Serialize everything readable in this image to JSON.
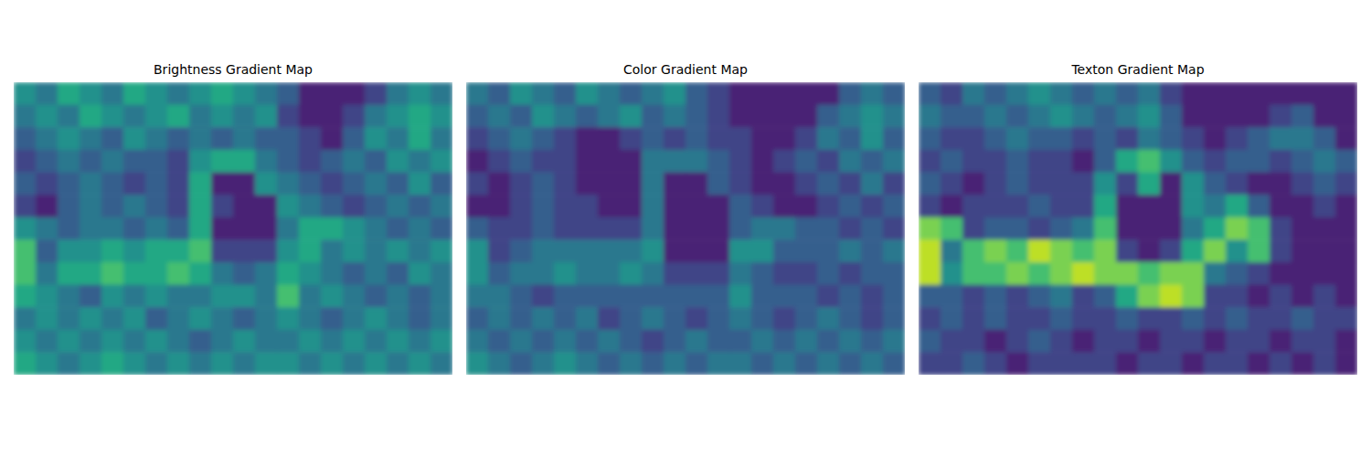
{
  "chart_data": [
    {
      "type": "heatmap",
      "title": "Brightness Gradient Map",
      "tick_labels": false,
      "zlim": [
        0,
        1
      ],
      "cells": [
        [
          0.5,
          0.4,
          0.6,
          0.5,
          0.4,
          0.6,
          0.5,
          0.4,
          0.5,
          0.6,
          0.5,
          0.4,
          0.3,
          0.1,
          0.1,
          0.1,
          0.2,
          0.4,
          0.5,
          0.4
        ],
        [
          0.4,
          0.5,
          0.4,
          0.6,
          0.5,
          0.4,
          0.5,
          0.6,
          0.4,
          0.5,
          0.4,
          0.5,
          0.2,
          0.1,
          0.1,
          0.2,
          0.4,
          0.5,
          0.6,
          0.5
        ],
        [
          0.3,
          0.4,
          0.5,
          0.4,
          0.3,
          0.5,
          0.4,
          0.3,
          0.4,
          0.3,
          0.4,
          0.3,
          0.3,
          0.2,
          0.1,
          0.3,
          0.5,
          0.4,
          0.6,
          0.4
        ],
        [
          0.2,
          0.3,
          0.4,
          0.3,
          0.4,
          0.3,
          0.3,
          0.2,
          0.5,
          0.6,
          0.6,
          0.4,
          0.3,
          0.2,
          0.3,
          0.4,
          0.3,
          0.5,
          0.4,
          0.5
        ],
        [
          0.3,
          0.2,
          0.3,
          0.4,
          0.3,
          0.2,
          0.3,
          0.2,
          0.6,
          0.1,
          0.1,
          0.5,
          0.4,
          0.3,
          0.2,
          0.3,
          0.4,
          0.3,
          0.5,
          0.3
        ],
        [
          0.2,
          0.1,
          0.3,
          0.4,
          0.3,
          0.4,
          0.3,
          0.2,
          0.6,
          0.2,
          0.1,
          0.1,
          0.5,
          0.4,
          0.3,
          0.2,
          0.3,
          0.4,
          0.3,
          0.4
        ],
        [
          0.5,
          0.4,
          0.3,
          0.4,
          0.4,
          0.3,
          0.4,
          0.3,
          0.6,
          0.1,
          0.1,
          0.1,
          0.4,
          0.6,
          0.6,
          0.5,
          0.4,
          0.3,
          0.4,
          0.3
        ],
        [
          0.7,
          0.3,
          0.5,
          0.5,
          0.6,
          0.5,
          0.6,
          0.6,
          0.7,
          0.2,
          0.2,
          0.2,
          0.5,
          0.6,
          0.4,
          0.5,
          0.4,
          0.5,
          0.4,
          0.5
        ],
        [
          0.7,
          0.4,
          0.6,
          0.6,
          0.7,
          0.6,
          0.6,
          0.7,
          0.6,
          0.4,
          0.3,
          0.4,
          0.6,
          0.5,
          0.4,
          0.3,
          0.4,
          0.3,
          0.5,
          0.4
        ],
        [
          0.6,
          0.5,
          0.4,
          0.3,
          0.5,
          0.4,
          0.5,
          0.4,
          0.4,
          0.5,
          0.5,
          0.4,
          0.7,
          0.4,
          0.5,
          0.4,
          0.3,
          0.4,
          0.3,
          0.4
        ],
        [
          0.4,
          0.5,
          0.4,
          0.5,
          0.4,
          0.5,
          0.3,
          0.4,
          0.5,
          0.4,
          0.3,
          0.4,
          0.5,
          0.4,
          0.3,
          0.4,
          0.5,
          0.4,
          0.3,
          0.4
        ],
        [
          0.5,
          0.4,
          0.5,
          0.4,
          0.5,
          0.4,
          0.5,
          0.4,
          0.3,
          0.4,
          0.5,
          0.4,
          0.4,
          0.5,
          0.4,
          0.5,
          0.4,
          0.5,
          0.4,
          0.5
        ],
        [
          0.6,
          0.5,
          0.4,
          0.5,
          0.6,
          0.5,
          0.4,
          0.5,
          0.4,
          0.5,
          0.4,
          0.5,
          0.5,
          0.4,
          0.5,
          0.4,
          0.5,
          0.4,
          0.5,
          0.4
        ]
      ]
    },
    {
      "type": "heatmap",
      "title": "Color Gradient Map",
      "tick_labels": false,
      "zlim": [
        0,
        1
      ],
      "cells": [
        [
          0.4,
          0.3,
          0.5,
          0.4,
          0.3,
          0.5,
          0.4,
          0.3,
          0.4,
          0.5,
          0.3,
          0.2,
          0.1,
          0.1,
          0.1,
          0.1,
          0.1,
          0.3,
          0.4,
          0.3
        ],
        [
          0.3,
          0.4,
          0.3,
          0.5,
          0.4,
          0.3,
          0.4,
          0.5,
          0.3,
          0.4,
          0.3,
          0.2,
          0.1,
          0.1,
          0.1,
          0.1,
          0.3,
          0.4,
          0.5,
          0.4
        ],
        [
          0.2,
          0.3,
          0.4,
          0.3,
          0.2,
          0.1,
          0.1,
          0.2,
          0.3,
          0.2,
          0.3,
          0.2,
          0.2,
          0.1,
          0.1,
          0.2,
          0.4,
          0.3,
          0.5,
          0.3
        ],
        [
          0.1,
          0.2,
          0.3,
          0.2,
          0.2,
          0.1,
          0.1,
          0.1,
          0.4,
          0.4,
          0.4,
          0.3,
          0.2,
          0.1,
          0.2,
          0.3,
          0.2,
          0.4,
          0.3,
          0.4
        ],
        [
          0.2,
          0.1,
          0.2,
          0.3,
          0.2,
          0.1,
          0.1,
          0.1,
          0.4,
          0.1,
          0.1,
          0.3,
          0.2,
          0.1,
          0.1,
          0.2,
          0.3,
          0.2,
          0.4,
          0.2
        ],
        [
          0.1,
          0.1,
          0.2,
          0.3,
          0.2,
          0.2,
          0.1,
          0.1,
          0.4,
          0.1,
          0.1,
          0.1,
          0.3,
          0.2,
          0.1,
          0.1,
          0.2,
          0.3,
          0.2,
          0.3
        ],
        [
          0.3,
          0.2,
          0.2,
          0.3,
          0.2,
          0.2,
          0.2,
          0.2,
          0.4,
          0.1,
          0.1,
          0.1,
          0.3,
          0.4,
          0.4,
          0.3,
          0.3,
          0.2,
          0.3,
          0.2
        ],
        [
          0.5,
          0.2,
          0.3,
          0.4,
          0.4,
          0.4,
          0.4,
          0.4,
          0.5,
          0.1,
          0.1,
          0.1,
          0.5,
          0.5,
          0.3,
          0.3,
          0.3,
          0.4,
          0.3,
          0.4
        ],
        [
          0.5,
          0.3,
          0.4,
          0.4,
          0.5,
          0.4,
          0.4,
          0.5,
          0.4,
          0.2,
          0.2,
          0.2,
          0.4,
          0.3,
          0.2,
          0.2,
          0.3,
          0.2,
          0.3,
          0.3
        ],
        [
          0.4,
          0.4,
          0.3,
          0.2,
          0.3,
          0.3,
          0.3,
          0.3,
          0.3,
          0.3,
          0.3,
          0.3,
          0.5,
          0.3,
          0.3,
          0.3,
          0.2,
          0.3,
          0.2,
          0.3
        ],
        [
          0.3,
          0.4,
          0.3,
          0.4,
          0.3,
          0.4,
          0.2,
          0.3,
          0.4,
          0.3,
          0.2,
          0.3,
          0.4,
          0.3,
          0.2,
          0.3,
          0.4,
          0.3,
          0.2,
          0.3
        ],
        [
          0.4,
          0.3,
          0.4,
          0.3,
          0.4,
          0.3,
          0.4,
          0.3,
          0.2,
          0.3,
          0.4,
          0.3,
          0.3,
          0.4,
          0.3,
          0.4,
          0.3,
          0.4,
          0.3,
          0.4
        ],
        [
          0.5,
          0.4,
          0.3,
          0.4,
          0.5,
          0.4,
          0.3,
          0.4,
          0.3,
          0.4,
          0.3,
          0.4,
          0.4,
          0.3,
          0.4,
          0.3,
          0.4,
          0.3,
          0.4,
          0.3
        ]
      ]
    },
    {
      "type": "heatmap",
      "title": "Texton Gradient Map",
      "tick_labels": false,
      "zlim": [
        0,
        1
      ],
      "cells": [
        [
          0.3,
          0.2,
          0.4,
          0.3,
          0.4,
          0.5,
          0.4,
          0.3,
          0.4,
          0.3,
          0.4,
          0.2,
          0.1,
          0.1,
          0.1,
          0.1,
          0.1,
          0.1,
          0.1,
          0.1
        ],
        [
          0.4,
          0.3,
          0.3,
          0.4,
          0.3,
          0.4,
          0.5,
          0.4,
          0.3,
          0.4,
          0.5,
          0.3,
          0.1,
          0.1,
          0.1,
          0.1,
          0.2,
          0.3,
          0.1,
          0.1
        ],
        [
          0.3,
          0.2,
          0.2,
          0.3,
          0.4,
          0.3,
          0.3,
          0.2,
          0.3,
          0.2,
          0.4,
          0.3,
          0.2,
          0.1,
          0.2,
          0.3,
          0.4,
          0.4,
          0.3,
          0.1
        ],
        [
          0.2,
          0.3,
          0.2,
          0.2,
          0.3,
          0.2,
          0.2,
          0.1,
          0.3,
          0.6,
          0.7,
          0.5,
          0.3,
          0.2,
          0.3,
          0.3,
          0.2,
          0.3,
          0.4,
          0.3
        ],
        [
          0.3,
          0.2,
          0.1,
          0.2,
          0.3,
          0.2,
          0.2,
          0.2,
          0.5,
          0.2,
          0.6,
          0.1,
          0.5,
          0.3,
          0.2,
          0.1,
          0.1,
          0.2,
          0.3,
          0.2
        ],
        [
          0.2,
          0.1,
          0.2,
          0.2,
          0.2,
          0.3,
          0.2,
          0.2,
          0.6,
          0.1,
          0.1,
          0.1,
          0.5,
          0.4,
          0.6,
          0.3,
          0.1,
          0.1,
          0.2,
          0.1
        ],
        [
          0.8,
          0.7,
          0.2,
          0.3,
          0.3,
          0.2,
          0.3,
          0.4,
          0.7,
          0.1,
          0.1,
          0.1,
          0.4,
          0.6,
          0.8,
          0.7,
          0.2,
          0.1,
          0.1,
          0.1
        ],
        [
          0.9,
          0.4,
          0.7,
          0.8,
          0.7,
          0.9,
          0.8,
          0.7,
          0.8,
          0.2,
          0.1,
          0.2,
          0.6,
          0.8,
          0.5,
          0.7,
          0.2,
          0.1,
          0.1,
          0.1
        ],
        [
          0.9,
          0.5,
          0.7,
          0.7,
          0.8,
          0.7,
          0.8,
          0.9,
          0.8,
          0.8,
          0.7,
          0.8,
          0.8,
          0.4,
          0.3,
          0.2,
          0.1,
          0.1,
          0.1,
          0.1
        ],
        [
          0.3,
          0.3,
          0.2,
          0.3,
          0.2,
          0.3,
          0.4,
          0.2,
          0.3,
          0.6,
          0.8,
          0.9,
          0.8,
          0.2,
          0.2,
          0.1,
          0.2,
          0.1,
          0.2,
          0.1
        ],
        [
          0.2,
          0.3,
          0.2,
          0.3,
          0.2,
          0.2,
          0.3,
          0.2,
          0.2,
          0.3,
          0.2,
          0.2,
          0.3,
          0.2,
          0.3,
          0.2,
          0.2,
          0.3,
          0.2,
          0.2
        ],
        [
          0.3,
          0.2,
          0.2,
          0.1,
          0.2,
          0.3,
          0.2,
          0.1,
          0.2,
          0.2,
          0.1,
          0.2,
          0.2,
          0.1,
          0.2,
          0.2,
          0.1,
          0.2,
          0.2,
          0.1
        ],
        [
          0.2,
          0.2,
          0.3,
          0.2,
          0.1,
          0.2,
          0.2,
          0.2,
          0.2,
          0.1,
          0.2,
          0.2,
          0.1,
          0.2,
          0.2,
          0.1,
          0.2,
          0.1,
          0.2,
          0.1
        ]
      ]
    }
  ]
}
